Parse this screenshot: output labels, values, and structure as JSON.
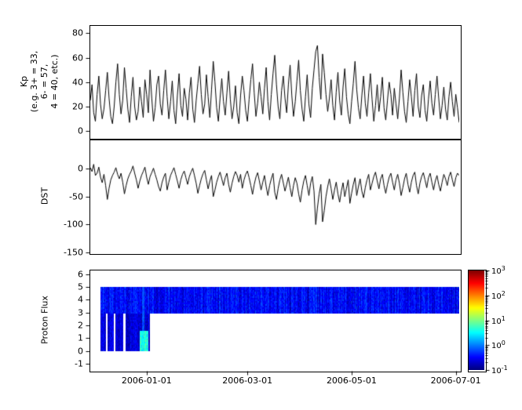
{
  "background": "#ffffff",
  "line_color": "#000000",
  "xaxis": {
    "tick_labels": [
      "2006-01-01",
      "2006-03-01",
      "2006-05-01",
      "2006-07-01"
    ],
    "tick_days": [
      33,
      92,
      153,
      214
    ],
    "total_days": 216
  },
  "colorbar": {
    "base": "10",
    "tick_exponents": [
      "3",
      "2",
      "1",
      "0",
      "-1"
    ],
    "scale": "log10",
    "colormap": "jet",
    "range_exp": [
      -1,
      3
    ]
  },
  "chart_data": [
    {
      "type": "line",
      "name": "kp-index",
      "ylabel_lines": [
        "Kp",
        "(e.g. 3+ = 33,",
        "6- = 57,",
        "4 = 40, etc.)"
      ],
      "ylim": [
        -5,
        86
      ],
      "yticks": [
        80,
        60,
        40,
        20,
        0
      ],
      "values_daily": [
        25,
        38,
        15,
        8,
        30,
        45,
        22,
        10,
        18,
        33,
        48,
        27,
        12,
        6,
        20,
        40,
        55,
        30,
        14,
        25,
        52,
        35,
        18,
        7,
        28,
        44,
        20,
        9,
        16,
        36,
        24,
        11,
        42,
        30,
        15,
        50,
        27,
        8,
        19,
        38,
        45,
        22,
        13,
        33,
        50,
        28,
        10,
        24,
        41,
        17,
        6,
        29,
        47,
        21,
        12,
        35,
        26,
        9,
        31,
        44,
        18,
        7,
        25,
        39,
        53,
        30,
        14,
        22,
        46,
        28,
        11,
        34,
        57,
        40,
        19,
        8,
        27,
        43,
        24,
        13,
        31,
        49,
        26,
        10,
        20,
        37,
        15,
        6,
        29,
        45,
        33,
        17,
        8,
        26,
        42,
        55,
        31,
        12,
        23,
        40,
        28,
        14,
        35,
        52,
        24,
        9,
        30,
        47,
        62,
        38,
        20,
        10,
        33,
        45,
        27,
        15,
        38,
        54,
        29,
        12,
        24,
        41,
        58,
        33,
        18,
        8,
        28,
        46,
        22,
        11,
        35,
        50,
        65,
        70,
        44,
        26,
        63,
        48,
        30,
        16,
        27,
        42,
        21,
        9,
        32,
        48,
        25,
        13,
        36,
        51,
        28,
        14,
        6,
        24,
        39,
        57,
        34,
        19,
        10,
        29,
        45,
        23,
        12,
        31,
        47,
        26,
        8,
        21,
        38,
        16,
        28,
        44,
        19,
        9,
        25,
        40,
        30,
        13,
        35,
        22,
        10,
        27,
        50,
        32,
        16,
        7,
        24,
        42,
        28,
        12,
        33,
        47,
        20,
        11,
        29,
        38,
        17,
        8,
        26,
        41,
        23,
        13,
        30,
        45,
        27,
        10,
        21,
        36,
        18,
        9,
        28,
        40,
        24,
        12,
        30,
        19,
        7
      ]
    },
    {
      "type": "line",
      "name": "dst",
      "ylabel": "DST",
      "ylim": [
        -150,
        51
      ],
      "yticks": [
        0,
        -50,
        -100,
        -150
      ],
      "values_daily": [
        2,
        -5,
        8,
        -12,
        -8,
        3,
        -15,
        -25,
        -10,
        -30,
        -55,
        -35,
        -20,
        -12,
        -6,
        2,
        -10,
        -18,
        -8,
        -24,
        -45,
        -30,
        -18,
        -10,
        -4,
        5,
        -8,
        -20,
        -35,
        -22,
        -12,
        -5,
        3,
        -15,
        -28,
        -14,
        -7,
        1,
        -10,
        -20,
        -32,
        -40,
        -25,
        -15,
        -8,
        -38,
        -24,
        -12,
        -5,
        2,
        -10,
        -22,
        -35,
        -20,
        -10,
        -4,
        -16,
        -28,
        -14,
        -6,
        1,
        -12,
        -26,
        -44,
        -30,
        -18,
        -9,
        -3,
        -20,
        -36,
        -22,
        -12,
        -50,
        -38,
        -24,
        -14,
        -6,
        -18,
        -30,
        -16,
        -8,
        -28,
        -42,
        -26,
        -14,
        -5,
        -12,
        -24,
        -10,
        -35,
        -20,
        -10,
        -4,
        -16,
        -30,
        -46,
        -28,
        -15,
        -7,
        -22,
        -38,
        -24,
        -12,
        -32,
        -48,
        -30,
        -18,
        -8,
        -42,
        -55,
        -35,
        -20,
        -10,
        -25,
        -40,
        -28,
        -15,
        -34,
        -50,
        -30,
        -16,
        -26,
        -45,
        -60,
        -38,
        -22,
        -12,
        -30,
        -48,
        -26,
        -14,
        -40,
        -100,
        -70,
        -45,
        -28,
        -95,
        -75,
        -50,
        -32,
        -18,
        -35,
        -55,
        -38,
        -24,
        -45,
        -60,
        -40,
        -25,
        -50,
        -35,
        -20,
        -62,
        -44,
        -28,
        -16,
        -48,
        -32,
        -18,
        -40,
        -52,
        -34,
        -20,
        -10,
        -38,
        -26,
        -14,
        -6,
        -22,
        -36,
        -18,
        -10,
        -30,
        -44,
        -28,
        -15,
        -8,
        -24,
        -38,
        -20,
        -10,
        -26,
        -48,
        -34,
        -18,
        -8,
        -28,
        -42,
        -24,
        -12,
        -6,
        -30,
        -45,
        -26,
        -14,
        -7,
        -20,
        -34,
        -16,
        -8,
        -24,
        -38,
        -22,
        -12,
        -28,
        -40,
        -24,
        -10,
        -18,
        -30,
        -14,
        -6,
        -20,
        -32,
        -16,
        -8,
        -12
      ]
    },
    {
      "type": "heatmap",
      "name": "proton-flux",
      "ylabel": "Proton Flux",
      "ylim": [
        -1.5,
        6.3
      ],
      "yticks": [
        6,
        5,
        4,
        3,
        2,
        1,
        0,
        -1
      ],
      "colormap": "jet",
      "scale": "log10",
      "value_range_exp": [
        -1,
        3
      ],
      "regions": {
        "band": {
          "day_start": 6,
          "day_end": 216,
          "y_bottom": 3,
          "y_top": 5,
          "exp_min": -0.9,
          "exp_max": -0.1
        },
        "block": {
          "day_start": 6,
          "day_end": 35,
          "y_bottom": 0,
          "y_top": 5,
          "exp_min": -1.0,
          "exp_max": -0.35
        },
        "gap_days": [
          [
            9,
            10
          ],
          [
            13.5,
            14.5
          ],
          [
            19,
            20.5
          ]
        ],
        "bright_column": {
          "day_start": 30.5,
          "day_end": 31.5,
          "y_bottom": 0,
          "y_top": 5,
          "exp_min": -0.4,
          "exp_max": 0.1
        },
        "hotspot": {
          "day_start": 29,
          "day_end": 34,
          "y_bottom": 0,
          "y_top": 1.6,
          "exp_min": 0.2,
          "exp_max": 1.1
        }
      }
    }
  ]
}
